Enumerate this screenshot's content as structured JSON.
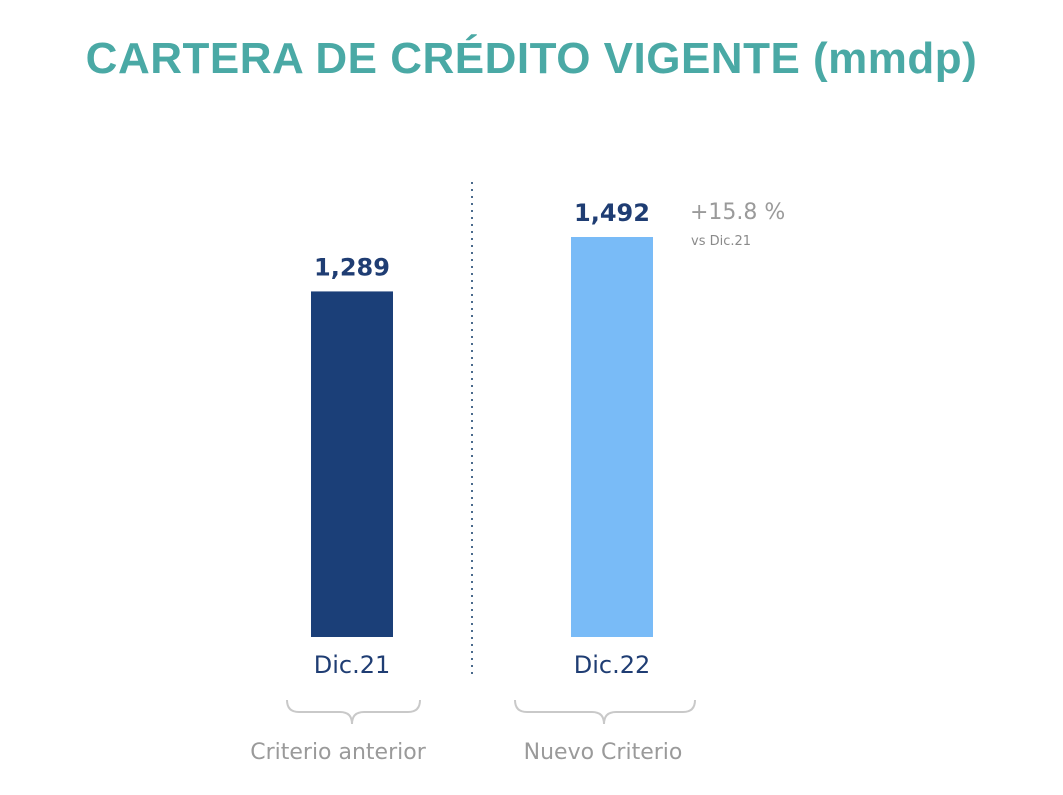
{
  "title": "CARTERA DE CRÉDITO VIGENTE (mmdp)",
  "colors": {
    "title": "#4aa9a5",
    "bar_anterior": "#1b3f78",
    "bar_nuevo": "#79bbf7",
    "value_text": "#1f3d73",
    "muted_text": "#9a9a9a",
    "divider": "#4a6a8c",
    "brace": "#c9c9c9"
  },
  "chart_data": {
    "type": "bar",
    "title": "CARTERA DE CRÉDITO VIGENTE (mmdp)",
    "categories": [
      "Dic.21",
      "Dic.22"
    ],
    "values": [
      1289,
      1492
    ],
    "value_labels": [
      "1,289",
      "1,492"
    ],
    "ylim": [
      0,
      1492
    ],
    "grid": false,
    "groups": [
      "Criterio anterior",
      "Nuevo Criterio"
    ],
    "annotation": {
      "change": "+15.8 %",
      "reference": "vs Dic.21"
    }
  }
}
